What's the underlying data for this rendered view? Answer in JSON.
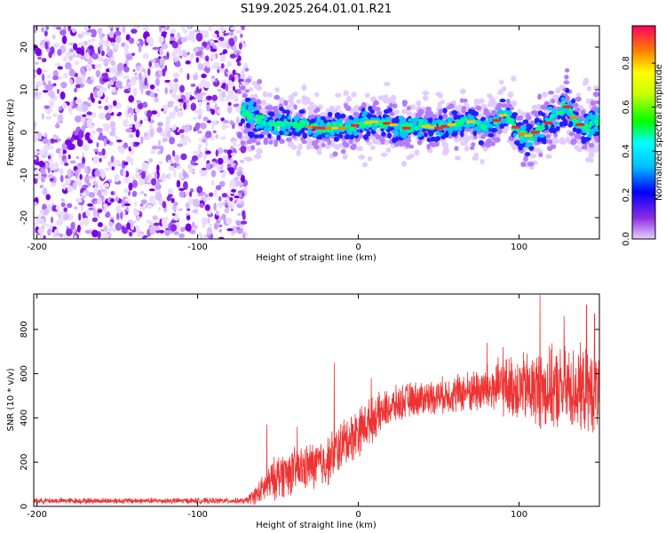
{
  "title": "S199.2025.264.01.01.R21",
  "chart_data": [
    {
      "type": "heatmap",
      "name": "spectrogram",
      "title": "S199.2025.264.01.01.R21",
      "xlabel": "Height of straight line (km)",
      "ylabel": "Frequency (Hz)",
      "xlim": [
        -202,
        150
      ],
      "ylim": [
        -25,
        25
      ],
      "x_ticks": [
        -200,
        -100,
        0,
        100
      ],
      "x_tick_labels": [
        "-200",
        "-100",
        "0",
        "100"
      ],
      "y_ticks": [
        -20,
        -10,
        0,
        10,
        20
      ],
      "y_tick_labels": [
        "-20",
        "-10",
        "0",
        "10",
        "20"
      ],
      "noise_region_x": [
        -202,
        -72
      ],
      "signal_track": [
        {
          "x": -72,
          "freq": 5
        },
        {
          "x": -65,
          "freq": 3
        },
        {
          "x": -55,
          "freq": 2
        },
        {
          "x": -45,
          "freq": 2
        },
        {
          "x": -35,
          "freq": 1.5
        },
        {
          "x": -25,
          "freq": 1
        },
        {
          "x": -15,
          "freq": 1
        },
        {
          "x": -5,
          "freq": 1
        },
        {
          "x": 0,
          "freq": 2
        },
        {
          "x": 10,
          "freq": 2.5
        },
        {
          "x": 20,
          "freq": 2
        },
        {
          "x": 30,
          "freq": 1
        },
        {
          "x": 40,
          "freq": 1.5
        },
        {
          "x": 50,
          "freq": 1
        },
        {
          "x": 60,
          "freq": 2
        },
        {
          "x": 70,
          "freq": 2.5
        },
        {
          "x": 80,
          "freq": 1
        },
        {
          "x": 90,
          "freq": 4
        },
        {
          "x": 95,
          "freq": 3
        },
        {
          "x": 100,
          "freq": 0
        },
        {
          "x": 105,
          "freq": -1
        },
        {
          "x": 110,
          "freq": 0
        },
        {
          "x": 115,
          "freq": 1
        },
        {
          "x": 120,
          "freq": 3
        },
        {
          "x": 125,
          "freq": 5
        },
        {
          "x": 130,
          "freq": 6
        },
        {
          "x": 135,
          "freq": 3
        },
        {
          "x": 140,
          "freq": 1
        },
        {
          "x": 145,
          "freq": 2
        },
        {
          "x": 150,
          "freq": 3
        }
      ]
    },
    {
      "type": "line",
      "name": "snr",
      "xlabel": "Height of straight line (km)",
      "ylabel": "SNR (10 * v/v)",
      "xlim": [
        -202,
        150
      ],
      "ylim": [
        0,
        960
      ],
      "x_ticks": [
        -200,
        -100,
        0,
        100
      ],
      "x_tick_labels": [
        "-200",
        "-100",
        "0",
        "100"
      ],
      "y_ticks": [
        0,
        200,
        400,
        600,
        800
      ],
      "y_tick_labels": [
        "0",
        "200",
        "400",
        "600",
        "800"
      ],
      "color": "#ee3333",
      "envelope": [
        {
          "x": -202,
          "mean": 25,
          "spread": 15
        },
        {
          "x": -70,
          "mean": 25,
          "spread": 15
        },
        {
          "x": -62,
          "mean": 60,
          "spread": 60
        },
        {
          "x": -50,
          "mean": 140,
          "spread": 120
        },
        {
          "x": -35,
          "mean": 170,
          "spread": 120
        },
        {
          "x": -20,
          "mean": 200,
          "spread": 130
        },
        {
          "x": -10,
          "mean": 280,
          "spread": 130
        },
        {
          "x": 0,
          "mean": 340,
          "spread": 130
        },
        {
          "x": 15,
          "mean": 430,
          "spread": 100
        },
        {
          "x": 30,
          "mean": 480,
          "spread": 90
        },
        {
          "x": 50,
          "mean": 500,
          "spread": 90
        },
        {
          "x": 70,
          "mean": 520,
          "spread": 110
        },
        {
          "x": 90,
          "mean": 540,
          "spread": 150
        },
        {
          "x": 110,
          "mean": 530,
          "spread": 200
        },
        {
          "x": 130,
          "mean": 530,
          "spread": 220
        },
        {
          "x": 150,
          "mean": 520,
          "spread": 220
        }
      ],
      "peaks": [
        {
          "x": -57,
          "y": 370
        },
        {
          "x": -38,
          "y": 360
        },
        {
          "x": -15,
          "y": 650
        },
        {
          "x": 8,
          "y": 580
        },
        {
          "x": 80,
          "y": 740
        },
        {
          "x": 90,
          "y": 720
        },
        {
          "x": 113,
          "y": 955
        },
        {
          "x": 128,
          "y": 860
        },
        {
          "x": 142,
          "y": 910
        },
        {
          "x": 147,
          "y": 870
        }
      ]
    }
  ],
  "colorbar": {
    "label": "Normalized spectral amplitude",
    "range": [
      0,
      0.97
    ],
    "ticks": [
      0,
      0.2,
      0.4,
      0.6,
      0.8
    ],
    "tick_labels": [
      "0.0",
      "0.2",
      "0.4",
      "0.6",
      "0.8"
    ]
  }
}
